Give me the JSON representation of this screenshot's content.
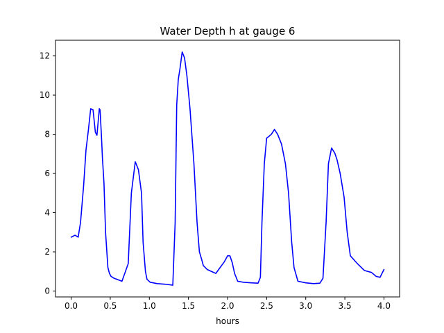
{
  "chart_data": {
    "type": "line",
    "title": "Water Depth h at gauge 6",
    "xlabel": "hours",
    "ylabel": "",
    "xlim": [
      -0.2,
      4.2
    ],
    "ylim": [
      -0.3,
      12.8
    ],
    "xticks": [
      0.0,
      0.5,
      1.0,
      1.5,
      2.0,
      2.5,
      3.0,
      3.5,
      4.0
    ],
    "xtick_labels": [
      "0.0",
      "0.5",
      "1.0",
      "1.5",
      "2.0",
      "2.5",
      "3.0",
      "3.5",
      "4.0"
    ],
    "yticks": [
      0,
      2,
      4,
      6,
      8,
      10,
      12
    ],
    "ytick_labels": [
      "0",
      "2",
      "4",
      "6",
      "8",
      "10",
      "12"
    ],
    "grid": false,
    "legend": "none",
    "series": [
      {
        "color": "#0000ff",
        "x": [
          0.0,
          0.05,
          0.09,
          0.12,
          0.16,
          0.19,
          0.22,
          0.25,
          0.28,
          0.31,
          0.33,
          0.36,
          0.37,
          0.39,
          0.4,
          0.42,
          0.44,
          0.47,
          0.49,
          0.51,
          0.55,
          0.65,
          0.73,
          0.77,
          0.82,
          0.86,
          0.9,
          0.92,
          0.95,
          0.97,
          1.01,
          1.1,
          1.2,
          1.3,
          1.33,
          1.35,
          1.37,
          1.39,
          1.42,
          1.45,
          1.48,
          1.52,
          1.57,
          1.61,
          1.64,
          1.67,
          1.69,
          1.74,
          1.85,
          1.96,
          2.0,
          2.03,
          2.06,
          2.09,
          2.13,
          2.2,
          2.3,
          2.39,
          2.42,
          2.44,
          2.47,
          2.5,
          2.56,
          2.6,
          2.64,
          2.69,
          2.74,
          2.78,
          2.82,
          2.85,
          2.9,
          3.0,
          3.1,
          3.18,
          3.22,
          3.26,
          3.29,
          3.33,
          3.37,
          3.4,
          3.44,
          3.49,
          3.53,
          3.57,
          3.66,
          3.75,
          3.84,
          3.9,
          3.95,
          4.0
        ],
        "y": [
          2.75,
          2.85,
          2.75,
          3.5,
          5.4,
          7.2,
          8.2,
          9.3,
          9.25,
          8.1,
          7.95,
          9.3,
          9.25,
          7.7,
          6.8,
          5.5,
          3.0,
          1.2,
          0.9,
          0.75,
          0.65,
          0.5,
          1.4,
          5.0,
          6.6,
          6.2,
          5.0,
          2.5,
          1.0,
          0.6,
          0.45,
          0.38,
          0.35,
          0.3,
          3.5,
          9.5,
          10.8,
          11.3,
          12.2,
          11.9,
          11.0,
          9.3,
          6.5,
          3.5,
          2.0,
          1.6,
          1.3,
          1.1,
          0.9,
          1.5,
          1.8,
          1.8,
          1.45,
          0.9,
          0.5,
          0.45,
          0.42,
          0.4,
          0.7,
          3.5,
          6.5,
          7.8,
          8.0,
          8.25,
          8.0,
          7.5,
          6.5,
          5.0,
          2.5,
          1.2,
          0.5,
          0.42,
          0.38,
          0.4,
          0.65,
          3.5,
          6.5,
          7.3,
          7.05,
          6.7,
          6.0,
          4.8,
          3.0,
          1.8,
          1.4,
          1.05,
          0.95,
          0.75,
          0.7,
          1.1
        ]
      }
    ]
  }
}
